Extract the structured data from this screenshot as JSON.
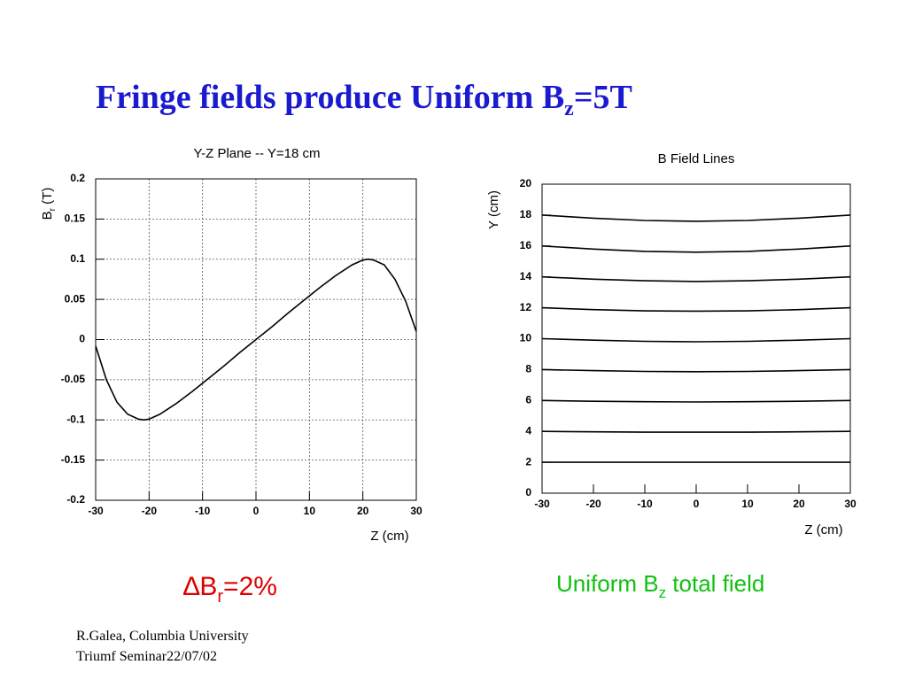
{
  "slide": {
    "title": [
      "Fringe fields produce Uniform B",
      "z",
      "=5T"
    ],
    "left_caption": [
      "∆B",
      "r",
      "=2%"
    ],
    "right_caption": [
      "Uniform B",
      "z",
      " total field"
    ],
    "footer": [
      "R.Galea, Columbia University",
      "Triumf Seminar22/07/02"
    ]
  },
  "chart_data": [
    {
      "type": "line",
      "title": "Y-Z Plane -- Y=18 cm",
      "xlabel": "Z (cm)",
      "ylabel": [
        "B",
        "r",
        " (T)"
      ],
      "x": [
        -30,
        -28,
        -26,
        -24,
        -22,
        -21,
        -20,
        -18,
        -15,
        -12,
        -9,
        -6,
        -3,
        0,
        3,
        6,
        9,
        12,
        15,
        18,
        20,
        21,
        22,
        24,
        26,
        28,
        30
      ],
      "values": [
        -0.008,
        -0.05,
        -0.078,
        -0.093,
        -0.099,
        -0.1,
        -0.099,
        -0.093,
        -0.08,
        -0.065,
        -0.049,
        -0.033,
        -0.016,
        0,
        0.016,
        0.033,
        0.049,
        0.065,
        0.08,
        0.093,
        0.099,
        0.1,
        0.099,
        0.093,
        0.075,
        0.048,
        0.01
      ],
      "color": "#000000",
      "xlim": [
        -30,
        30
      ],
      "xticks": [
        -30,
        -20,
        -10,
        0,
        10,
        20,
        30
      ],
      "ylim": [
        -0.2,
        0.2
      ],
      "yticks": [
        0.2,
        0.15,
        0.1,
        0.05,
        0,
        -0.05,
        -0.1,
        -0.15,
        -0.2
      ],
      "grid": true
    },
    {
      "type": "line",
      "title": "B Field Lines",
      "xlabel": "Z (cm)",
      "ylabel": [
        "Y (cm)"
      ],
      "x": [
        -30,
        -20,
        -10,
        0,
        10,
        20,
        30
      ],
      "series": [
        {
          "color": "#000000",
          "values": [
            18,
            17.8,
            17.65,
            17.6,
            17.65,
            17.8,
            18
          ]
        },
        {
          "color": "#000000",
          "values": [
            16,
            15.8,
            15.65,
            15.6,
            15.65,
            15.8,
            16
          ]
        },
        {
          "color": "#000000",
          "values": [
            14,
            13.85,
            13.75,
            13.7,
            13.75,
            13.85,
            14
          ]
        },
        {
          "color": "#000000",
          "values": [
            12,
            11.88,
            11.8,
            11.78,
            11.8,
            11.88,
            12
          ]
        },
        {
          "color": "#000000",
          "values": [
            10,
            9.9,
            9.83,
            9.8,
            9.83,
            9.9,
            10
          ]
        },
        {
          "color": "#000000",
          "values": [
            8,
            7.93,
            7.88,
            7.86,
            7.88,
            7.93,
            8
          ]
        },
        {
          "color": "#000000",
          "values": [
            6,
            5.95,
            5.92,
            5.9,
            5.92,
            5.95,
            6
          ]
        },
        {
          "color": "#000000",
          "values": [
            4,
            3.97,
            3.95,
            3.95,
            3.95,
            3.97,
            4
          ]
        },
        {
          "color": "#000000",
          "values": [
            2,
            2,
            2,
            2,
            2,
            2,
            2
          ]
        }
      ],
      "xlim": [
        -30,
        30
      ],
      "xticks": [
        -30,
        -20,
        -10,
        0,
        10,
        20,
        30
      ],
      "ylim": [
        0,
        20
      ],
      "yticks": [
        0,
        2,
        4,
        6,
        8,
        10,
        12,
        14,
        16,
        18,
        20
      ],
      "grid": false
    }
  ]
}
